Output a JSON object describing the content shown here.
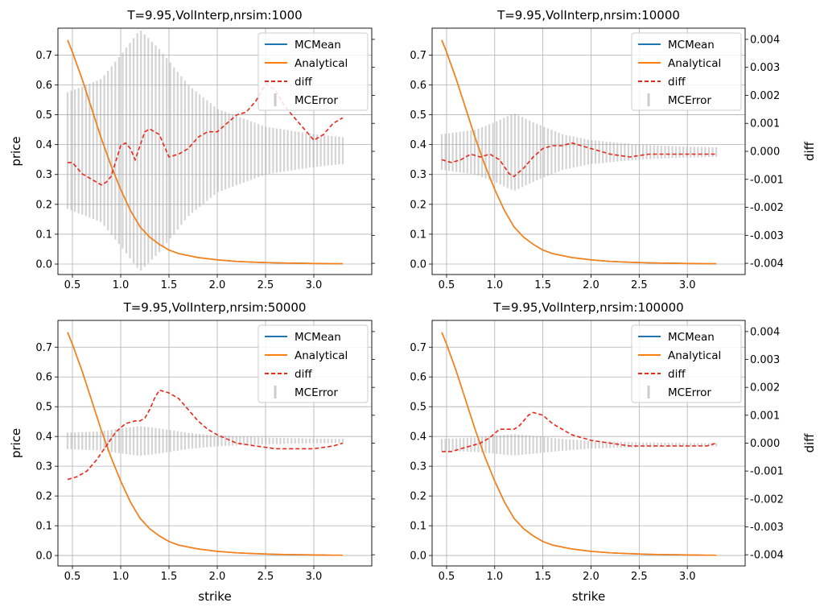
{
  "legend_labels": {
    "mc_mean": "MCMean",
    "analytical": "Analytical",
    "diff": "diff",
    "mc_error": "MCError"
  },
  "colors": {
    "mc_mean": "#1f77b4",
    "analytical": "#ff7f0e",
    "diff": "#e8271b",
    "mc_error": "#a9a9a9",
    "grid": "#b0b0b0"
  },
  "chart_data": [
    {
      "type": "line",
      "title": "T=9.95,VolInterp,nrsim:1000",
      "xlabel": "",
      "ylabel": "price",
      "y2label": "",
      "xlim": [
        0.35,
        3.6
      ],
      "ylim": [
        -0.035,
        0.79
      ],
      "y2lim": [
        -0.0044,
        0.0044
      ],
      "xticks": [
        "0.5",
        "1.0",
        "1.5",
        "2.0",
        "2.5",
        "3.0"
      ],
      "yticks": [
        "0.0",
        "0.1",
        "0.2",
        "0.3",
        "0.4",
        "0.5",
        "0.6",
        "0.7"
      ],
      "y2ticks": [],
      "grid": true,
      "legend": "top-right",
      "strikes": [
        0.45,
        0.5,
        0.6,
        0.7,
        0.8,
        0.9,
        1.0,
        1.1,
        1.2,
        1.3,
        1.4,
        1.5,
        1.6,
        1.8,
        2.0,
        2.2,
        2.4,
        2.6,
        2.8,
        3.0,
        3.2,
        3.3
      ],
      "analytical": [
        0.75,
        0.71,
        0.62,
        0.52,
        0.42,
        0.33,
        0.25,
        0.18,
        0.125,
        0.09,
        0.066,
        0.047,
        0.035,
        0.022,
        0.014,
        0.009,
        0.006,
        0.004,
        0.003,
        0.002,
        0.001,
        0.001
      ],
      "diff_x": [
        0.45,
        0.5,
        0.6,
        0.7,
        0.8,
        0.85,
        0.9,
        1.0,
        1.05,
        1.1,
        1.15,
        1.2,
        1.25,
        1.3,
        1.4,
        1.5,
        1.6,
        1.7,
        1.8,
        1.9,
        2.0,
        2.1,
        2.2,
        2.3,
        2.4,
        2.5,
        2.6,
        2.7,
        2.8,
        2.9,
        3.0,
        3.1,
        3.2,
        3.3
      ],
      "diff": [
        -0.0004,
        -0.0004,
        -0.0008,
        -0.001,
        -0.0012,
        -0.0011,
        -0.0009,
        0.0002,
        0.0003,
        0.0001,
        -0.0003,
        0.0002,
        0.0007,
        0.0008,
        0.0006,
        -0.0002,
        -0.0001,
        0.0001,
        0.0005,
        0.0007,
        0.0007,
        0.001,
        0.0013,
        0.0014,
        0.0018,
        0.0024,
        0.0022,
        0.0016,
        0.0012,
        0.0008,
        0.0004,
        0.0006,
        0.001,
        0.0012
      ],
      "error_center": 0.38,
      "error_half": [
        [
          0.45,
          0.195
        ],
        [
          0.8,
          0.24
        ],
        [
          1.0,
          0.32
        ],
        [
          1.2,
          0.405
        ],
        [
          1.4,
          0.34
        ],
        [
          1.7,
          0.22
        ],
        [
          2.0,
          0.14
        ],
        [
          2.5,
          0.08
        ],
        [
          3.0,
          0.055
        ],
        [
          3.3,
          0.045
        ]
      ]
    },
    {
      "type": "line",
      "title": "T=9.95,VolInterp,nrsim:10000",
      "xlabel": "",
      "ylabel": "",
      "y2label": "diff",
      "xlim": [
        0.35,
        3.6
      ],
      "ylim": [
        -0.035,
        0.79
      ],
      "y2lim": [
        -0.0044,
        0.0044
      ],
      "xticks": [
        "0.5",
        "1.0",
        "1.5",
        "2.0",
        "2.5",
        "3.0"
      ],
      "yticks": [
        "0.0",
        "0.1",
        "0.2",
        "0.3",
        "0.4",
        "0.5",
        "0.6",
        "0.7"
      ],
      "y2ticks": [
        "-0.004",
        "-0.003",
        "-0.002",
        "-0.001",
        "0.000",
        "0.001",
        "0.002",
        "0.003",
        "0.004"
      ],
      "grid": true,
      "legend": "top-right",
      "strikes": [
        0.45,
        0.5,
        0.6,
        0.7,
        0.8,
        0.9,
        1.0,
        1.1,
        1.2,
        1.3,
        1.4,
        1.5,
        1.6,
        1.8,
        2.0,
        2.2,
        2.4,
        2.6,
        2.8,
        3.0,
        3.2,
        3.3
      ],
      "analytical": [
        0.75,
        0.71,
        0.62,
        0.52,
        0.42,
        0.33,
        0.25,
        0.18,
        0.125,
        0.09,
        0.066,
        0.047,
        0.035,
        0.022,
        0.014,
        0.009,
        0.006,
        0.004,
        0.003,
        0.002,
        0.001,
        0.001
      ],
      "diff_x": [
        0.45,
        0.55,
        0.65,
        0.75,
        0.85,
        0.95,
        1.05,
        1.15,
        1.2,
        1.3,
        1.4,
        1.5,
        1.6,
        1.7,
        1.8,
        1.9,
        2.0,
        2.2,
        2.4,
        2.6,
        2.8,
        3.0,
        3.2,
        3.3
      ],
      "diff": [
        -0.0003,
        -0.0004,
        -0.0003,
        -0.0001,
        -0.0002,
        -0.0001,
        -0.0003,
        -0.0008,
        -0.0009,
        -0.0006,
        -0.0002,
        0.0001,
        0.0002,
        0.0002,
        0.0003,
        0.0002,
        0.0001,
        -0.0001,
        -0.0002,
        -0.0001,
        -0.0001,
        -0.0001,
        -0.0001,
        -0.0001
      ],
      "error_center": 0.375,
      "error_half": [
        [
          0.45,
          0.06
        ],
        [
          0.8,
          0.075
        ],
        [
          1.0,
          0.1
        ],
        [
          1.2,
          0.13
        ],
        [
          1.4,
          0.1
        ],
        [
          1.7,
          0.06
        ],
        [
          2.0,
          0.04
        ],
        [
          2.5,
          0.025
        ],
        [
          3.0,
          0.018
        ],
        [
          3.3,
          0.016
        ]
      ]
    },
    {
      "type": "line",
      "title": "T=9.95,VolInterp,nrsim:50000",
      "xlabel": "strike",
      "ylabel": "price",
      "y2label": "",
      "xlim": [
        0.35,
        3.6
      ],
      "ylim": [
        -0.035,
        0.79
      ],
      "y2lim": [
        -0.0044,
        0.0044
      ],
      "xticks": [
        "0.5",
        "1.0",
        "1.5",
        "2.0",
        "2.5",
        "3.0"
      ],
      "yticks": [
        "0.0",
        "0.1",
        "0.2",
        "0.3",
        "0.4",
        "0.5",
        "0.6",
        "0.7"
      ],
      "y2ticks": [],
      "grid": true,
      "legend": "top-right",
      "strikes": [
        0.45,
        0.5,
        0.6,
        0.7,
        0.8,
        0.9,
        1.0,
        1.1,
        1.2,
        1.3,
        1.4,
        1.5,
        1.6,
        1.8,
        2.0,
        2.2,
        2.4,
        2.6,
        2.8,
        3.0,
        3.2,
        3.3
      ],
      "analytical": [
        0.75,
        0.71,
        0.62,
        0.52,
        0.42,
        0.33,
        0.25,
        0.18,
        0.125,
        0.09,
        0.066,
        0.047,
        0.035,
        0.022,
        0.014,
        0.009,
        0.006,
        0.004,
        0.003,
        0.002,
        0.001,
        0.001
      ],
      "diff_x": [
        0.45,
        0.55,
        0.65,
        0.75,
        0.85,
        0.95,
        1.05,
        1.15,
        1.2,
        1.25,
        1.3,
        1.35,
        1.4,
        1.5,
        1.6,
        1.7,
        1.8,
        1.9,
        2.0,
        2.2,
        2.4,
        2.6,
        2.8,
        3.0,
        3.2,
        3.3
      ],
      "diff": [
        -0.0013,
        -0.0012,
        -0.001,
        -0.0006,
        -0.0001,
        0.0004,
        0.0007,
        0.0008,
        0.0008,
        0.0009,
        0.0012,
        0.0016,
        0.0019,
        0.0018,
        0.0016,
        0.0012,
        0.0008,
        0.0005,
        0.0003,
        0.0,
        -0.0001,
        -0.0002,
        -0.0002,
        -0.0002,
        -0.0001,
        0.0
      ],
      "error_center": 0.385,
      "error_half": [
        [
          0.45,
          0.028
        ],
        [
          0.8,
          0.032
        ],
        [
          1.0,
          0.042
        ],
        [
          1.2,
          0.05
        ],
        [
          1.4,
          0.042
        ],
        [
          1.7,
          0.027
        ],
        [
          2.0,
          0.018
        ],
        [
          2.5,
          0.011
        ],
        [
          3.0,
          0.008
        ],
        [
          3.3,
          0.007
        ]
      ]
    },
    {
      "type": "line",
      "title": "T=9.95,VolInterp,nrsim:100000",
      "xlabel": "strike",
      "ylabel": "",
      "y2label": "diff",
      "xlim": [
        0.35,
        3.6
      ],
      "ylim": [
        -0.035,
        0.79
      ],
      "y2lim": [
        -0.0044,
        0.0044
      ],
      "xticks": [
        "0.5",
        "1.0",
        "1.5",
        "2.0",
        "2.5",
        "3.0"
      ],
      "yticks": [
        "0.0",
        "0.1",
        "0.2",
        "0.3",
        "0.4",
        "0.5",
        "0.6",
        "0.7"
      ],
      "y2ticks": [
        "-0.004",
        "-0.003",
        "-0.002",
        "-0.001",
        "0.000",
        "0.001",
        "0.002",
        "0.003",
        "0.004"
      ],
      "grid": true,
      "legend": "top-right",
      "strikes": [
        0.45,
        0.5,
        0.6,
        0.7,
        0.8,
        0.9,
        1.0,
        1.1,
        1.2,
        1.3,
        1.4,
        1.5,
        1.6,
        1.8,
        2.0,
        2.2,
        2.4,
        2.6,
        2.8,
        3.0,
        3.2,
        3.3
      ],
      "analytical": [
        0.75,
        0.71,
        0.62,
        0.52,
        0.42,
        0.33,
        0.25,
        0.18,
        0.125,
        0.09,
        0.066,
        0.047,
        0.035,
        0.022,
        0.014,
        0.009,
        0.006,
        0.004,
        0.003,
        0.002,
        0.001,
        0.001
      ],
      "diff_x": [
        0.45,
        0.55,
        0.65,
        0.75,
        0.85,
        0.95,
        1.05,
        1.15,
        1.2,
        1.25,
        1.3,
        1.35,
        1.4,
        1.5,
        1.6,
        1.7,
        1.8,
        1.9,
        2.0,
        2.2,
        2.4,
        2.6,
        2.8,
        3.0,
        3.2,
        3.3
      ],
      "diff": [
        -0.0003,
        -0.0003,
        -0.0002,
        -0.0001,
        0.0,
        0.0002,
        0.0005,
        0.0005,
        0.0005,
        0.0006,
        0.0008,
        0.001,
        0.0011,
        0.001,
        0.0007,
        0.0005,
        0.0003,
        0.0002,
        0.0001,
        0.0,
        -0.0001,
        -0.0001,
        -0.0001,
        -0.0001,
        -0.0001,
        0.0
      ],
      "error_center": 0.372,
      "error_half": [
        [
          0.45,
          0.02
        ],
        [
          0.8,
          0.024
        ],
        [
          1.0,
          0.03
        ],
        [
          1.2,
          0.036
        ],
        [
          1.4,
          0.03
        ],
        [
          1.7,
          0.02
        ],
        [
          2.0,
          0.013
        ],
        [
          2.5,
          0.008
        ],
        [
          3.0,
          0.006
        ],
        [
          3.3,
          0.005
        ]
      ]
    }
  ]
}
